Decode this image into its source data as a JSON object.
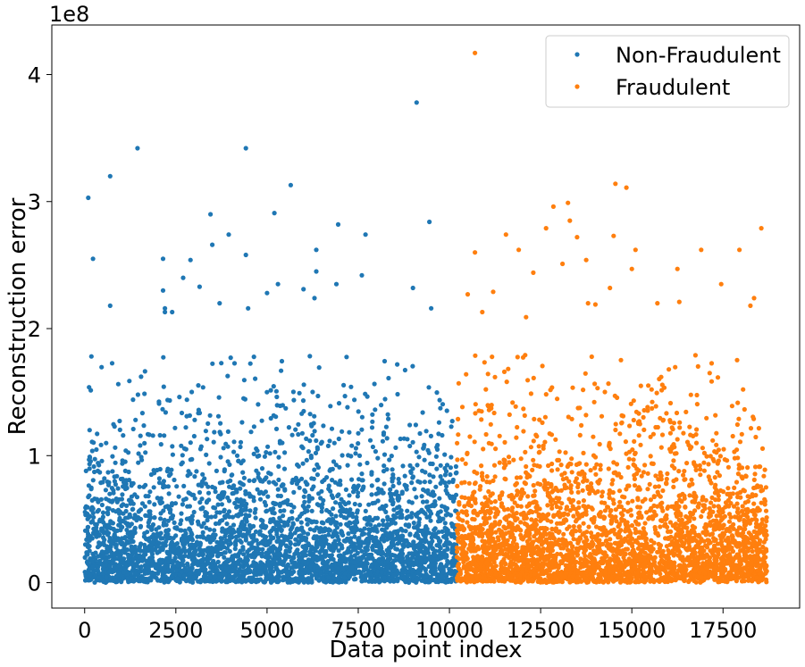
{
  "chart_data": {
    "type": "scatter",
    "title": "",
    "xlabel": "Data point index",
    "ylabel": "Reconstruction error",
    "y_offset_text": "1e8",
    "xlim": [
      -900,
      19600
    ],
    "ylim": [
      -2.0,
      43.9
    ],
    "y_unit_multiplier": 100000000,
    "x_ticks": [
      0,
      2500,
      5000,
      7500,
      10000,
      12500,
      15000,
      17500
    ],
    "x_tick_labels": [
      "0",
      "2500",
      "5000",
      "7500",
      "10000",
      "12500",
      "15000",
      "17500"
    ],
    "y_ticks": [
      0,
      10,
      20,
      30,
      40
    ],
    "y_tick_labels": [
      "0",
      "1",
      "2",
      "3",
      "4"
    ],
    "grid": false,
    "legend_position": "top-right",
    "series": [
      {
        "name": "Non-Fraudulent",
        "color": "#1f77b4",
        "x_range": [
          0,
          10200
        ],
        "n_points": 10200,
        "distribution": "exponential-like, dense near 0, sparse above 1e8",
        "notable_points": [
          {
            "x": 9100,
            "y": 37.8
          },
          {
            "x": 1450,
            "y": 34.2
          },
          {
            "x": 4420,
            "y": 34.2
          },
          {
            "x": 700,
            "y": 32.0
          },
          {
            "x": 5650,
            "y": 31.3
          },
          {
            "x": 100,
            "y": 30.3
          },
          {
            "x": 5200,
            "y": 29.1
          },
          {
            "x": 3450,
            "y": 29.0
          },
          {
            "x": 9450,
            "y": 28.4
          },
          {
            "x": 6950,
            "y": 28.2
          },
          {
            "x": 3950,
            "y": 27.4
          },
          {
            "x": 7700,
            "y": 27.4
          },
          {
            "x": 3500,
            "y": 26.6
          },
          {
            "x": 6350,
            "y": 26.2
          },
          {
            "x": 4420,
            "y": 25.8
          },
          {
            "x": 230,
            "y": 25.5
          },
          {
            "x": 2150,
            "y": 25.5
          },
          {
            "x": 2900,
            "y": 25.4
          },
          {
            "x": 6350,
            "y": 24.5
          },
          {
            "x": 7600,
            "y": 24.2
          },
          {
            "x": 2700,
            "y": 24.0
          },
          {
            "x": 5300,
            "y": 23.5
          },
          {
            "x": 6900,
            "y": 23.5
          },
          {
            "x": 9000,
            "y": 23.2
          },
          {
            "x": 2150,
            "y": 23.0
          },
          {
            "x": 3150,
            "y": 23.3
          },
          {
            "x": 6000,
            "y": 23.1
          },
          {
            "x": 5000,
            "y": 22.8
          },
          {
            "x": 6300,
            "y": 22.4
          },
          {
            "x": 3700,
            "y": 22.0
          },
          {
            "x": 700,
            "y": 21.8
          },
          {
            "x": 2200,
            "y": 21.6
          },
          {
            "x": 9500,
            "y": 21.6
          },
          {
            "x": 2400,
            "y": 21.3
          },
          {
            "x": 2200,
            "y": 21.3
          },
          {
            "x": 4480,
            "y": 21.6
          }
        ]
      },
      {
        "name": "Fraudulent",
        "color": "#ff7f0e",
        "x_range": [
          10200,
          18700
        ],
        "n_points": 8500,
        "distribution": "exponential-like, dense near 0, sparse above 1e8",
        "notable_points": [
          {
            "x": 10700,
            "y": 41.7
          },
          {
            "x": 14550,
            "y": 31.4
          },
          {
            "x": 14850,
            "y": 31.1
          },
          {
            "x": 13250,
            "y": 29.9
          },
          {
            "x": 12850,
            "y": 29.6
          },
          {
            "x": 13300,
            "y": 28.5
          },
          {
            "x": 12650,
            "y": 27.9
          },
          {
            "x": 18550,
            "y": 27.9
          },
          {
            "x": 14500,
            "y": 27.3
          },
          {
            "x": 11550,
            "y": 27.4
          },
          {
            "x": 13500,
            "y": 27.2
          },
          {
            "x": 16900,
            "y": 26.2
          },
          {
            "x": 17950,
            "y": 26.2
          },
          {
            "x": 11900,
            "y": 26.2
          },
          {
            "x": 15100,
            "y": 26.2
          },
          {
            "x": 10700,
            "y": 26.0
          },
          {
            "x": 13100,
            "y": 25.1
          },
          {
            "x": 13750,
            "y": 25.4
          },
          {
            "x": 16250,
            "y": 24.7
          },
          {
            "x": 15000,
            "y": 24.7
          },
          {
            "x": 12300,
            "y": 24.4
          },
          {
            "x": 17450,
            "y": 23.5
          },
          {
            "x": 14400,
            "y": 23.2
          },
          {
            "x": 11200,
            "y": 22.9
          },
          {
            "x": 10500,
            "y": 22.7
          },
          {
            "x": 13800,
            "y": 22.0
          },
          {
            "x": 16300,
            "y": 22.1
          },
          {
            "x": 15700,
            "y": 22.0
          },
          {
            "x": 10900,
            "y": 21.3
          },
          {
            "x": 12100,
            "y": 20.9
          },
          {
            "x": 18350,
            "y": 22.4
          },
          {
            "x": 18250,
            "y": 21.8
          },
          {
            "x": 14000,
            "y": 21.9
          }
        ]
      }
    ]
  }
}
